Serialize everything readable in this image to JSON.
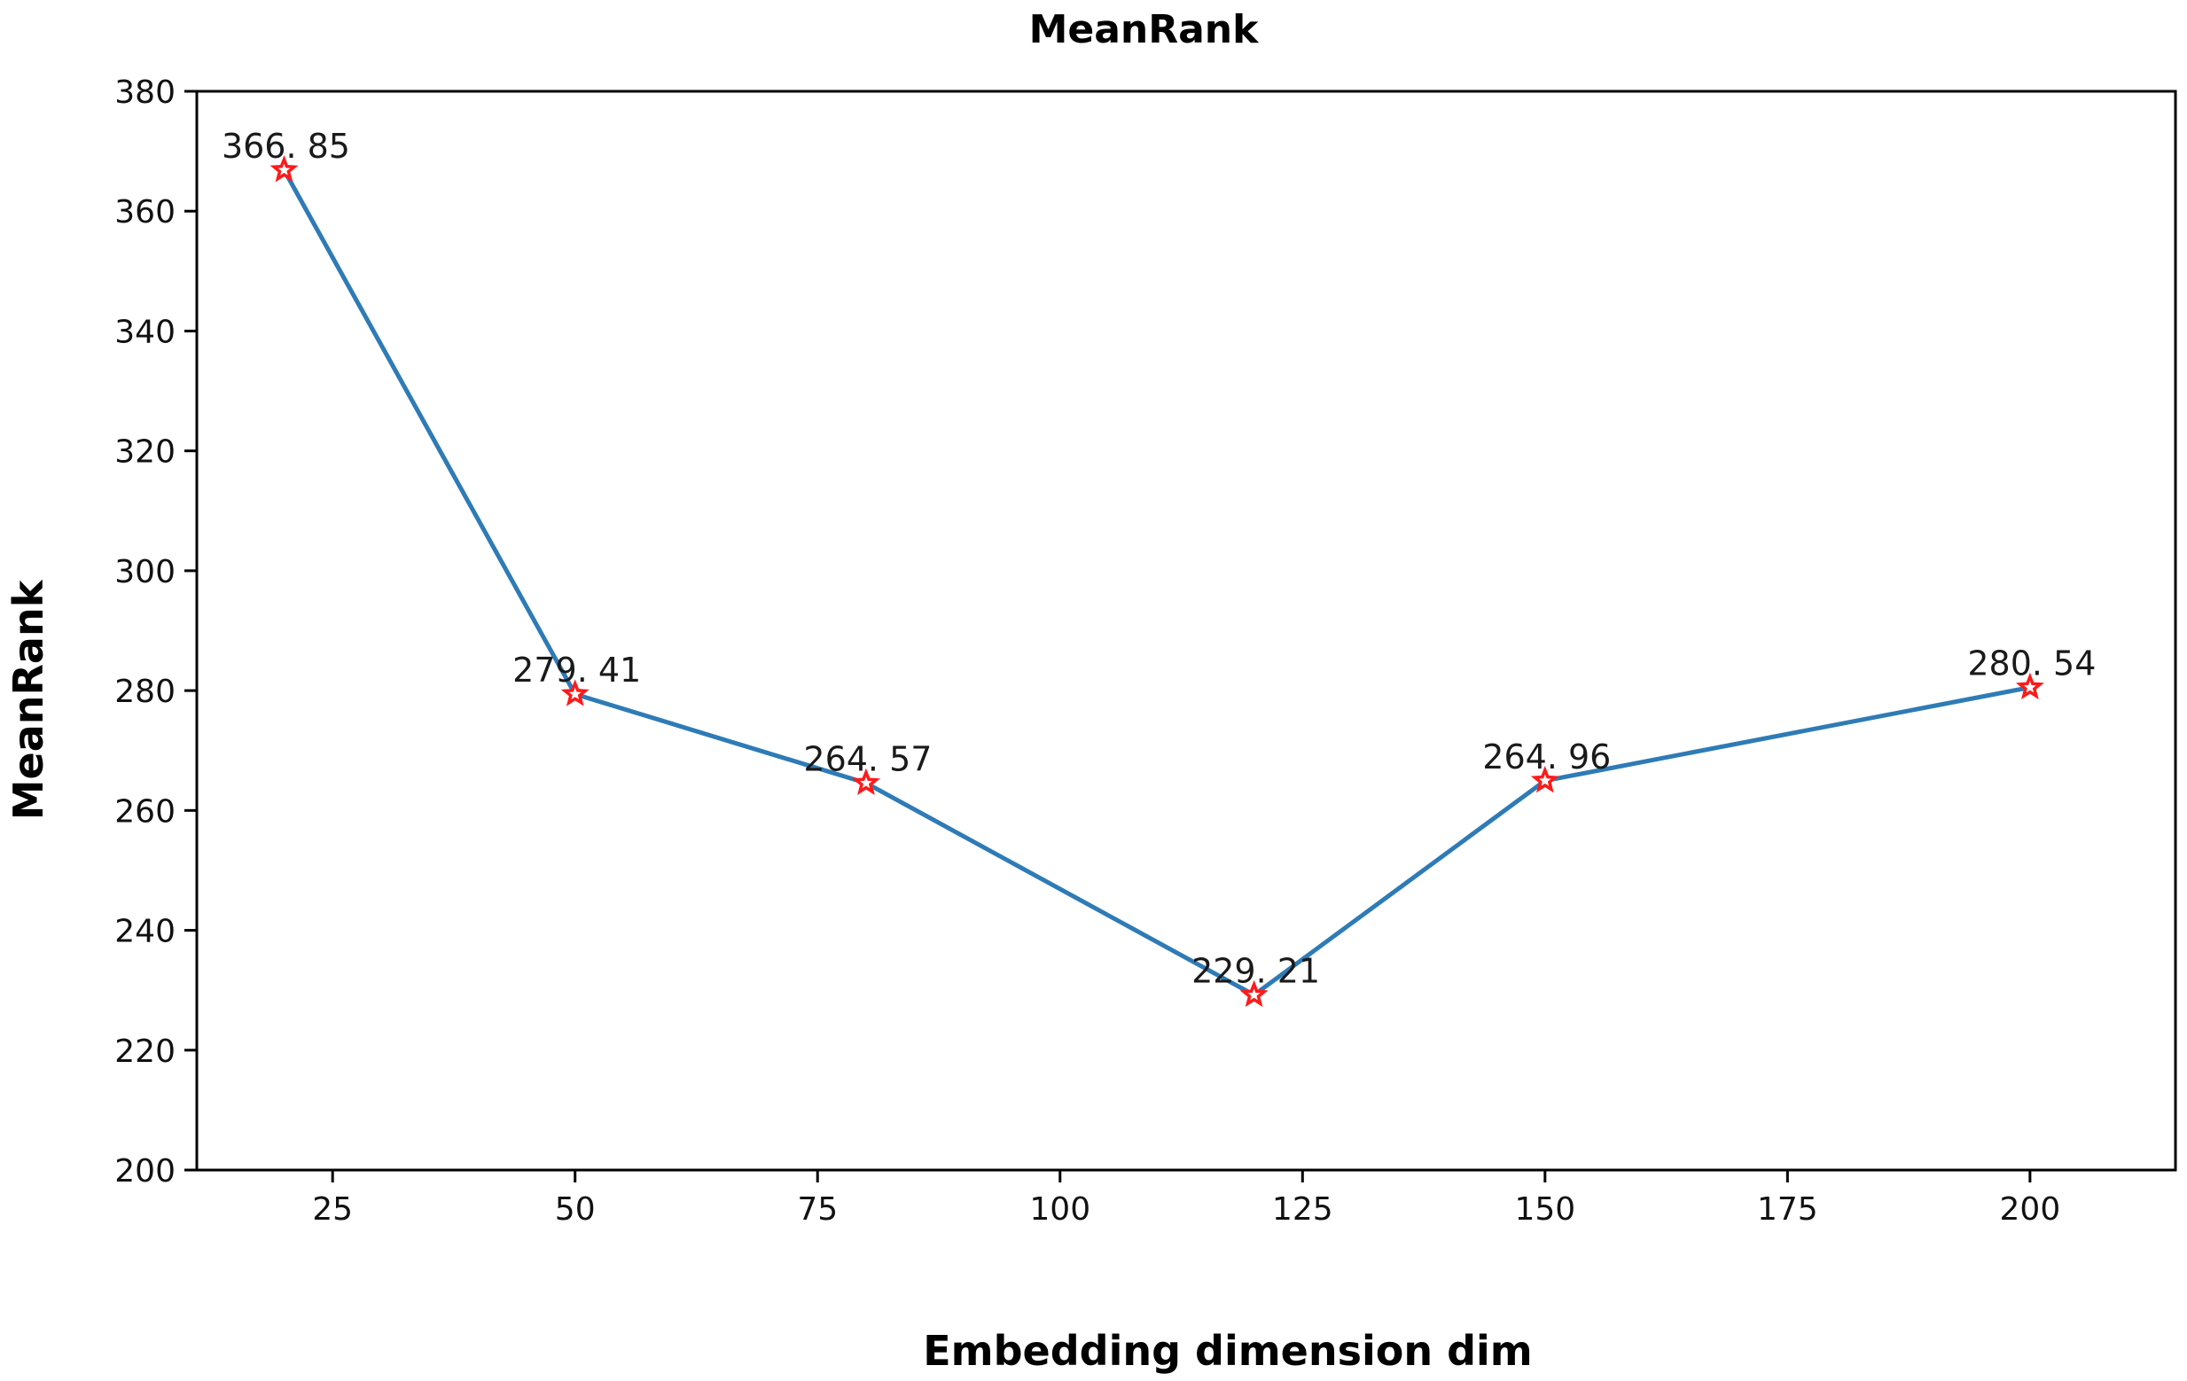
{
  "chart_data": {
    "type": "line",
    "title": "MeanRank",
    "xlabel": "Embedding dimension dim",
    "ylabel": "MeanRank",
    "xlim": [
      11,
      215
    ],
    "ylim": [
      200,
      380
    ],
    "x_ticks": [
      25,
      50,
      75,
      100,
      125,
      150,
      175,
      200
    ],
    "y_ticks": [
      200,
      220,
      240,
      260,
      280,
      300,
      320,
      340,
      360,
      380
    ],
    "grid": false,
    "series": [
      {
        "name": "MeanRank",
        "x": [
          20,
          50,
          80,
          120,
          150,
          200
        ],
        "values": [
          366.85,
          279.41,
          264.57,
          229.21,
          264.96,
          280.54
        ],
        "labels": [
          "366. 85",
          "279. 41",
          "264. 57",
          "229. 21",
          "264. 96",
          "280. 54"
        ],
        "line_color": "#2e7bb6",
        "marker": "star",
        "marker_color": "#ff1a1a"
      }
    ]
  }
}
